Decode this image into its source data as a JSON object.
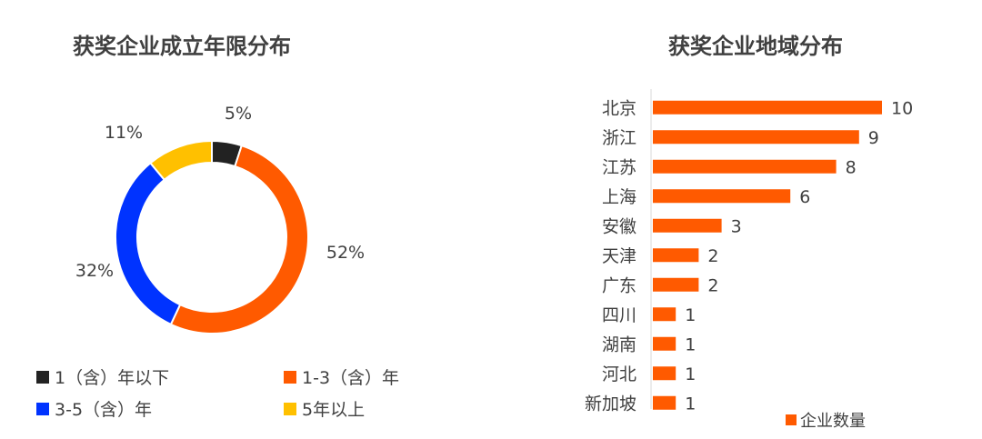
{
  "chart_data": [
    {
      "type": "pie",
      "title": "获奖企业成立年限分布",
      "labels": [
        "1（含）年以下",
        "1-3（含）年",
        "3-5（含）年",
        "5年以上"
      ],
      "values": [
        5,
        52,
        32,
        11
      ],
      "value_labels": [
        "5%",
        "52%",
        "32%",
        "11%"
      ],
      "colors": [
        "#222222",
        "#FF5A00",
        "#0033FF",
        "#FFC000"
      ],
      "donut": true,
      "legend_position": "bottom"
    },
    {
      "type": "bar",
      "orientation": "horizontal",
      "title": "获奖企业地域分布",
      "categories": [
        "北京",
        "浙江",
        "江苏",
        "上海",
        "安徽",
        "天津",
        "广东",
        "四川",
        "湖南",
        "河北",
        "新加坡"
      ],
      "series": [
        {
          "name": "企业数量",
          "values": [
            10,
            9,
            8,
            6,
            3,
            2,
            2,
            1,
            1,
            1,
            1
          ],
          "color": "#FF5A00"
        }
      ],
      "xlim": [
        0,
        10
      ],
      "grid": false,
      "legend_position": "bottom-right"
    }
  ]
}
